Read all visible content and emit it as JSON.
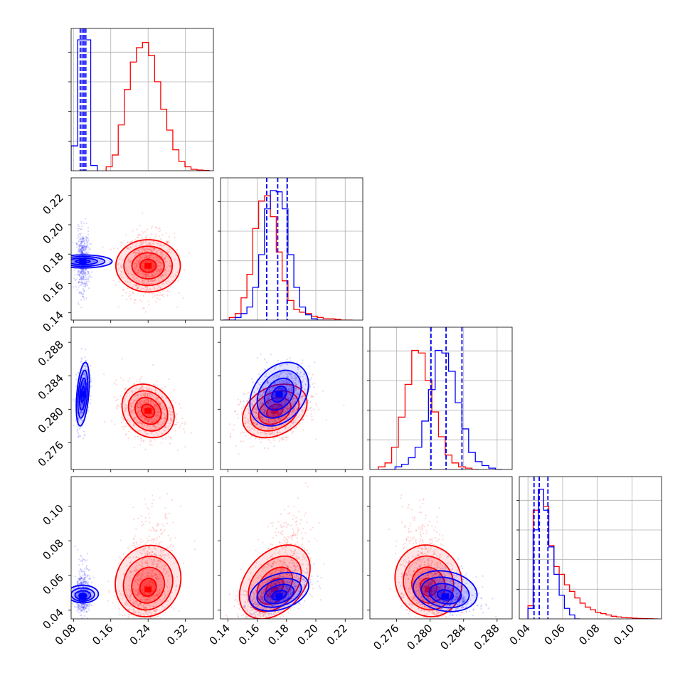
{
  "chart_data": {
    "type": "corner",
    "grid": true,
    "series_colors": {
      "red": "#ff0000",
      "blue": "#0000ff"
    },
    "params": [
      {
        "range": [
          0.075,
          0.38
        ],
        "ticks": [
          0.08,
          0.16,
          0.24,
          0.32
        ],
        "tick_labels": [
          "0.08",
          "0.16",
          "0.24",
          "0.32"
        ]
      },
      {
        "range": [
          0.135,
          0.232
        ],
        "ticks": [
          0.14,
          0.16,
          0.18,
          0.2,
          0.22
        ],
        "tick_labels": [
          "0.14",
          "0.16",
          "0.18",
          "0.20",
          "0.22"
        ]
      },
      {
        "range": [
          0.2728,
          0.2898
        ],
        "ticks": [
          0.276,
          0.28,
          0.284,
          0.288
        ],
        "tick_labels": [
          "0.276",
          "0.280",
          "0.284",
          "0.288"
        ]
      },
      {
        "range": [
          0.035,
          0.117
        ],
        "ticks": [
          0.04,
          0.06,
          0.08,
          0.1
        ],
        "tick_labels": [
          "0.04",
          "0.06",
          "0.08",
          "0.10"
        ]
      }
    ],
    "hist_ylim": [
      1.0,
      1.0,
      1.0,
      1.0
    ],
    "histograms": [
      {
        "blue": {
          "edges": [
            0.075,
            0.089,
            0.103,
            0.117,
            0.131
          ],
          "counts": [
            0.19,
            1.0,
            1.0,
            0.04
          ]
        },
        "red": {
          "edges": [
            0.15,
            0.163,
            0.176,
            0.189,
            0.202,
            0.215,
            0.228,
            0.241,
            0.254,
            0.267,
            0.28,
            0.293,
            0.306,
            0.319,
            0.332,
            0.345,
            0.358,
            0.371
          ],
          "counts": [
            0.03,
            0.12,
            0.35,
            0.62,
            0.83,
            0.94,
            0.98,
            0.88,
            0.68,
            0.47,
            0.31,
            0.16,
            0.07,
            0.03,
            0.01,
            0.005,
            0.002
          ]
        },
        "quantiles": [
          0.0945,
          0.0985,
          0.1025,
          0.1065
        ]
      },
      {
        "blue": {
          "edges": [
            0.137,
            0.141,
            0.145,
            0.149,
            0.153,
            0.157,
            0.161,
            0.165,
            0.169,
            0.173,
            0.177,
            0.181,
            0.185,
            0.189,
            0.193,
            0.197,
            0.201,
            0.205
          ],
          "counts": [
            0.0,
            0.0,
            0.02,
            0.05,
            0.1,
            0.25,
            0.5,
            0.85,
            0.99,
            0.98,
            0.85,
            0.5,
            0.25,
            0.1,
            0.04,
            0.01,
            0.0
          ]
        },
        "red": {
          "edges": [
            0.137,
            0.141,
            0.145,
            0.149,
            0.153,
            0.157,
            0.161,
            0.165,
            0.169,
            0.173,
            0.177,
            0.181,
            0.185,
            0.189,
            0.193,
            0.197,
            0.201,
            0.205,
            0.209,
            0.213,
            0.217,
            0.221,
            0.225
          ],
          "counts": [
            0.0,
            0.02,
            0.05,
            0.17,
            0.35,
            0.7,
            0.91,
            0.95,
            0.79,
            0.52,
            0.3,
            0.15,
            0.08,
            0.06,
            0.05,
            0.03,
            0.02,
            0.01,
            0.01,
            0.005,
            0.0,
            0.0
          ]
        },
        "quantiles": [
          0.1665,
          0.174,
          0.1805
        ]
      },
      {
        "blue": {
          "edges": [
            0.2742,
            0.275,
            0.2758,
            0.2766,
            0.2774,
            0.2782,
            0.279,
            0.2798,
            0.2806,
            0.2814,
            0.2822,
            0.283,
            0.2838,
            0.2846,
            0.2854,
            0.2862,
            0.287,
            0.2878,
            0.2886
          ],
          "counts": [
            0.0,
            0.0,
            0.02,
            0.04,
            0.09,
            0.17,
            0.37,
            0.61,
            0.91,
            0.89,
            0.75,
            0.51,
            0.31,
            0.13,
            0.06,
            0.03,
            0.01,
            0.0
          ]
        },
        "red": {
          "edges": [
            0.2738,
            0.2746,
            0.2754,
            0.2762,
            0.277,
            0.2778,
            0.2786,
            0.2794,
            0.2802,
            0.281,
            0.2818,
            0.2826,
            0.2834,
            0.2842,
            0.285,
            0.2858
          ],
          "counts": [
            0.02,
            0.05,
            0.17,
            0.4,
            0.65,
            0.91,
            0.89,
            0.68,
            0.44,
            0.25,
            0.11,
            0.05,
            0.02,
            0.01,
            0.0
          ]
        },
        "quantiles": [
          0.2801,
          0.2819,
          0.2838
        ]
      },
      {
        "blue": {
          "edges": [
            0.04,
            0.043,
            0.046,
            0.049,
            0.052,
            0.055,
            0.058,
            0.061,
            0.064,
            0.067,
            0.07
          ],
          "counts": [
            0.08,
            0.68,
            0.99,
            0.83,
            0.55,
            0.34,
            0.18,
            0.08,
            0.03,
            0.0
          ]
        },
        "red": {
          "edges": [
            0.04,
            0.043,
            0.046,
            0.049,
            0.052,
            0.055,
            0.058,
            0.061,
            0.064,
            0.067,
            0.07,
            0.073,
            0.076,
            0.079,
            0.082,
            0.085,
            0.088,
            0.091,
            0.094,
            0.097,
            0.1,
            0.103,
            0.106,
            0.109,
            0.112,
            0.115
          ],
          "counts": [
            0.1,
            0.83,
            0.99,
            0.86,
            0.56,
            0.4,
            0.34,
            0.26,
            0.21,
            0.16,
            0.12,
            0.09,
            0.07,
            0.05,
            0.04,
            0.03,
            0.02,
            0.015,
            0.01,
            0.008,
            0.005,
            0.003,
            0.002,
            0.001,
            0.0
          ]
        },
        "quantiles": [
          0.0435,
          0.0465,
          0.0515
        ]
      }
    ],
    "scatter_2d": [
      {
        "x_param": 0,
        "y_param": 1,
        "red": {
          "mean": [
            0.24,
            0.172
          ],
          "sd": [
            0.028,
            0.011
          ],
          "rho": 0.0
        },
        "blue": {
          "mean": [
            0.1,
            0.175
          ],
          "sd": [
            0.007,
            0.01
          ],
          "rho": 0.0
        }
      },
      {
        "x_param": 0,
        "y_param": 2,
        "red": {
          "mean": [
            0.24,
            0.2798
          ],
          "sd": [
            0.028,
            0.0016
          ],
          "rho": -0.2
        },
        "blue": {
          "mean": [
            0.1,
            0.2818
          ],
          "sd": [
            0.007,
            0.0019
          ],
          "rho": 0.4
        }
      },
      {
        "x_param": 1,
        "y_param": 2,
        "red": {
          "mean": [
            0.172,
            0.2798
          ],
          "sd": [
            0.011,
            0.0016
          ],
          "rho": 0.3
        },
        "blue": {
          "mean": [
            0.175,
            0.2818
          ],
          "sd": [
            0.01,
            0.0019
          ],
          "rho": 0.3
        }
      },
      {
        "x_param": 0,
        "y_param": 3,
        "red": {
          "mean": [
            0.24,
            0.052
          ],
          "sd": [
            0.028,
            0.01
          ],
          "rho": 0.3
        },
        "blue": {
          "mean": [
            0.1,
            0.048
          ],
          "sd": [
            0.007,
            0.0045
          ],
          "rho": 0.0
        }
      },
      {
        "x_param": 1,
        "y_param": 3,
        "red": {
          "mean": [
            0.172,
            0.052
          ],
          "sd": [
            0.011,
            0.01
          ],
          "rho": 0.6
        },
        "blue": {
          "mean": [
            0.175,
            0.048
          ],
          "sd": [
            0.01,
            0.0045
          ],
          "rho": 0.5
        }
      },
      {
        "x_param": 2,
        "y_param": 3,
        "red": {
          "mean": [
            0.2798,
            0.052
          ],
          "sd": [
            0.0016,
            0.01
          ],
          "rho": -0.3
        },
        "blue": {
          "mean": [
            0.2818,
            0.048
          ],
          "sd": [
            0.0019,
            0.0045
          ],
          "rho": -0.3
        }
      }
    ],
    "contour_levels_sigma": [
      0.5,
      1.0,
      1.5,
      2.0
    ]
  }
}
